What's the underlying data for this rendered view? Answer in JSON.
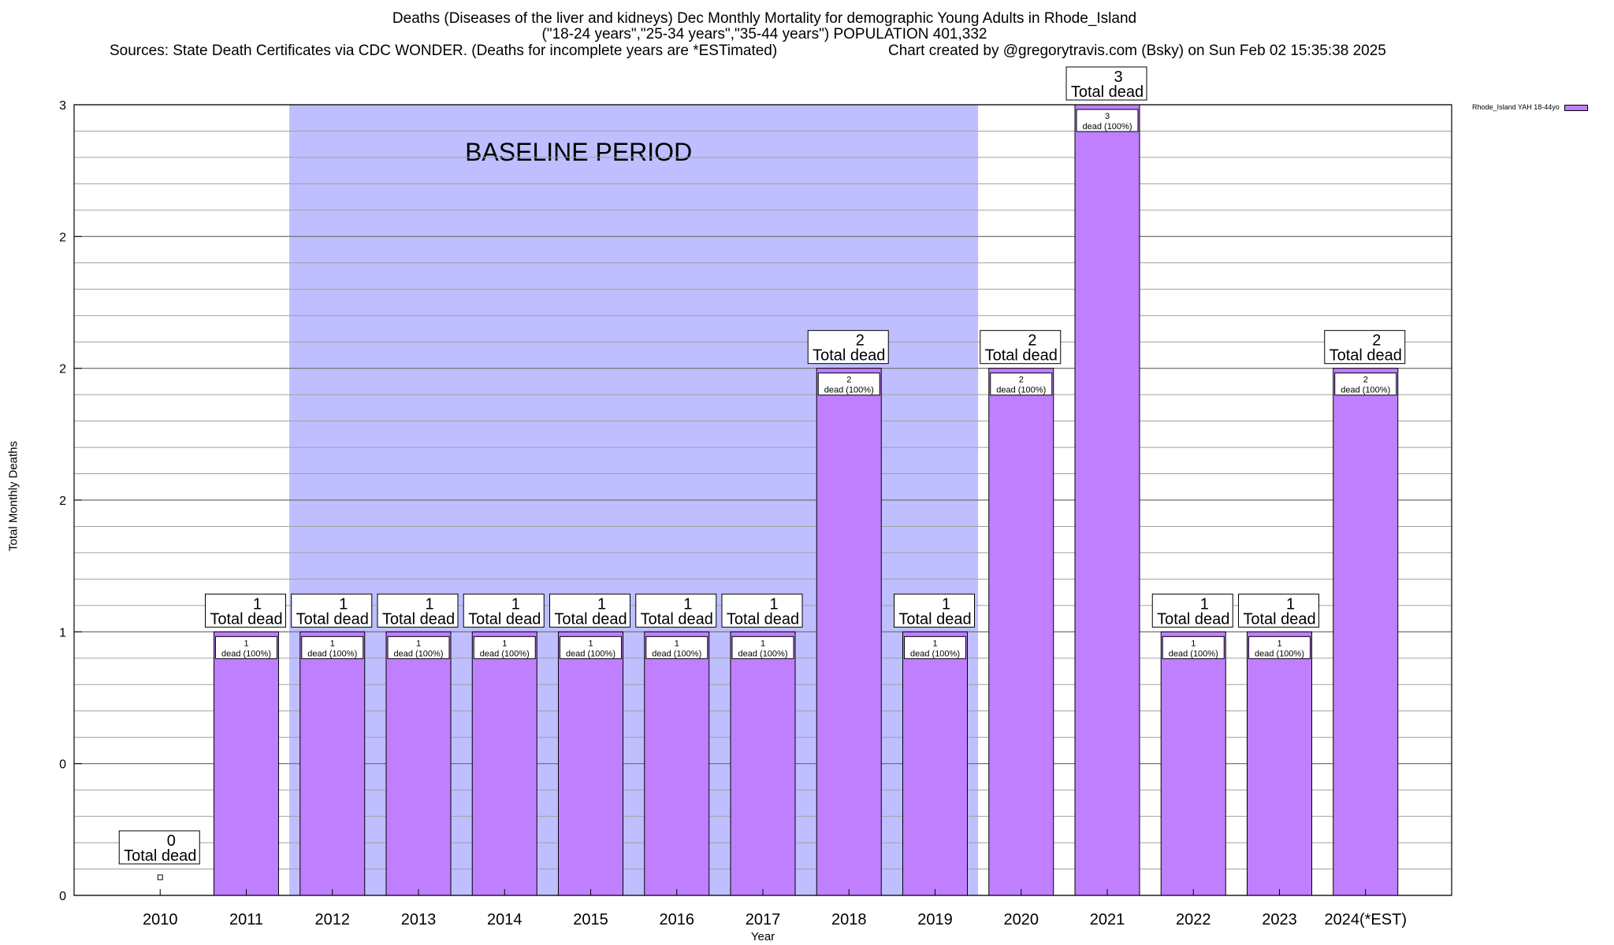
{
  "header": {
    "title": "Deaths (Diseases of the liver and kidneys) Dec Monthly Mortality for demographic Young Adults in Rhode_Island",
    "subtitle": "(\"18-24 years\",\"25-34 years\",\"35-44 years\") POPULATION 401,332",
    "sources": "Sources: State Death Certificates via CDC WONDER. (Deaths for incomplete years are *ESTimated)",
    "credit": "Chart created by @gregorytravis.com (Bsky) on Sun Feb 02 15:35:38 2025"
  },
  "chart_data": {
    "type": "bar",
    "categories": [
      "2010",
      "2011",
      "2012",
      "2013",
      "2014",
      "2015",
      "2016",
      "2017",
      "2018",
      "2019",
      "2020",
      "2021",
      "2022",
      "2023",
      "2024(*EST)"
    ],
    "series": [
      {
        "name": "Rhode_Island YAH 18-44yo",
        "values": [
          0,
          1,
          1,
          1,
          1,
          1,
          1,
          1,
          2,
          1,
          2,
          3,
          1,
          1,
          2
        ],
        "color": "#bf7fff"
      }
    ],
    "top_labels": [
      {
        "count": "0",
        "text": "Total dead"
      },
      {
        "count": "1",
        "text": "Total dead"
      },
      {
        "count": "1",
        "text": "Total dead"
      },
      {
        "count": "1",
        "text": "Total dead"
      },
      {
        "count": "1",
        "text": "Total dead"
      },
      {
        "count": "1",
        "text": "Total dead"
      },
      {
        "count": "1",
        "text": "Total dead"
      },
      {
        "count": "1",
        "text": "Total dead"
      },
      {
        "count": "2",
        "text": "Total dead"
      },
      {
        "count": "1",
        "text": "Total dead"
      },
      {
        "count": "2",
        "text": "Total dead"
      },
      {
        "count": "3",
        "text": "Total dead"
      },
      {
        "count": "1",
        "text": "Total dead"
      },
      {
        "count": "1",
        "text": "Total dead"
      },
      {
        "count": "2",
        "text": "Total dead"
      }
    ],
    "inner_labels": [
      null,
      {
        "count": "1",
        "text": "dead (100%)"
      },
      {
        "count": "1",
        "text": "dead (100%)"
      },
      {
        "count": "1",
        "text": "dead (100%)"
      },
      {
        "count": "1",
        "text": "dead (100%)"
      },
      {
        "count": "1",
        "text": "dead (100%)"
      },
      {
        "count": "1",
        "text": "dead (100%)"
      },
      {
        "count": "1",
        "text": "dead (100%)"
      },
      {
        "count": "2",
        "text": "dead (100%)"
      },
      {
        "count": "1",
        "text": "dead (100%)"
      },
      {
        "count": "2",
        "text": "dead (100%)"
      },
      {
        "count": "3",
        "text": "dead (100%)"
      },
      {
        "count": "1",
        "text": "dead (100%)"
      },
      {
        "count": "1",
        "text": "dead (100%)"
      },
      {
        "count": "2",
        "text": "dead (100%)"
      }
    ],
    "ylim": [
      0,
      3
    ],
    "y_ticks": [
      {
        "value": 0,
        "label": "0"
      },
      {
        "value": 0.5,
        "label": "0"
      },
      {
        "value": 1,
        "label": "1"
      },
      {
        "value": 1.5,
        "label": "2"
      },
      {
        "value": 2,
        "label": "2"
      },
      {
        "value": 2.5,
        "label": "2"
      },
      {
        "value": 3,
        "label": "3"
      }
    ],
    "minor_grid_step": 0.1,
    "baseline": {
      "label": "BASELINE PERIOD",
      "from": "2012",
      "to": "2019",
      "color": "#bfbfff"
    },
    "xlabel": "Year",
    "ylabel": "Total Monthly Deaths",
    "legend": "top-right",
    "grid": true
  }
}
